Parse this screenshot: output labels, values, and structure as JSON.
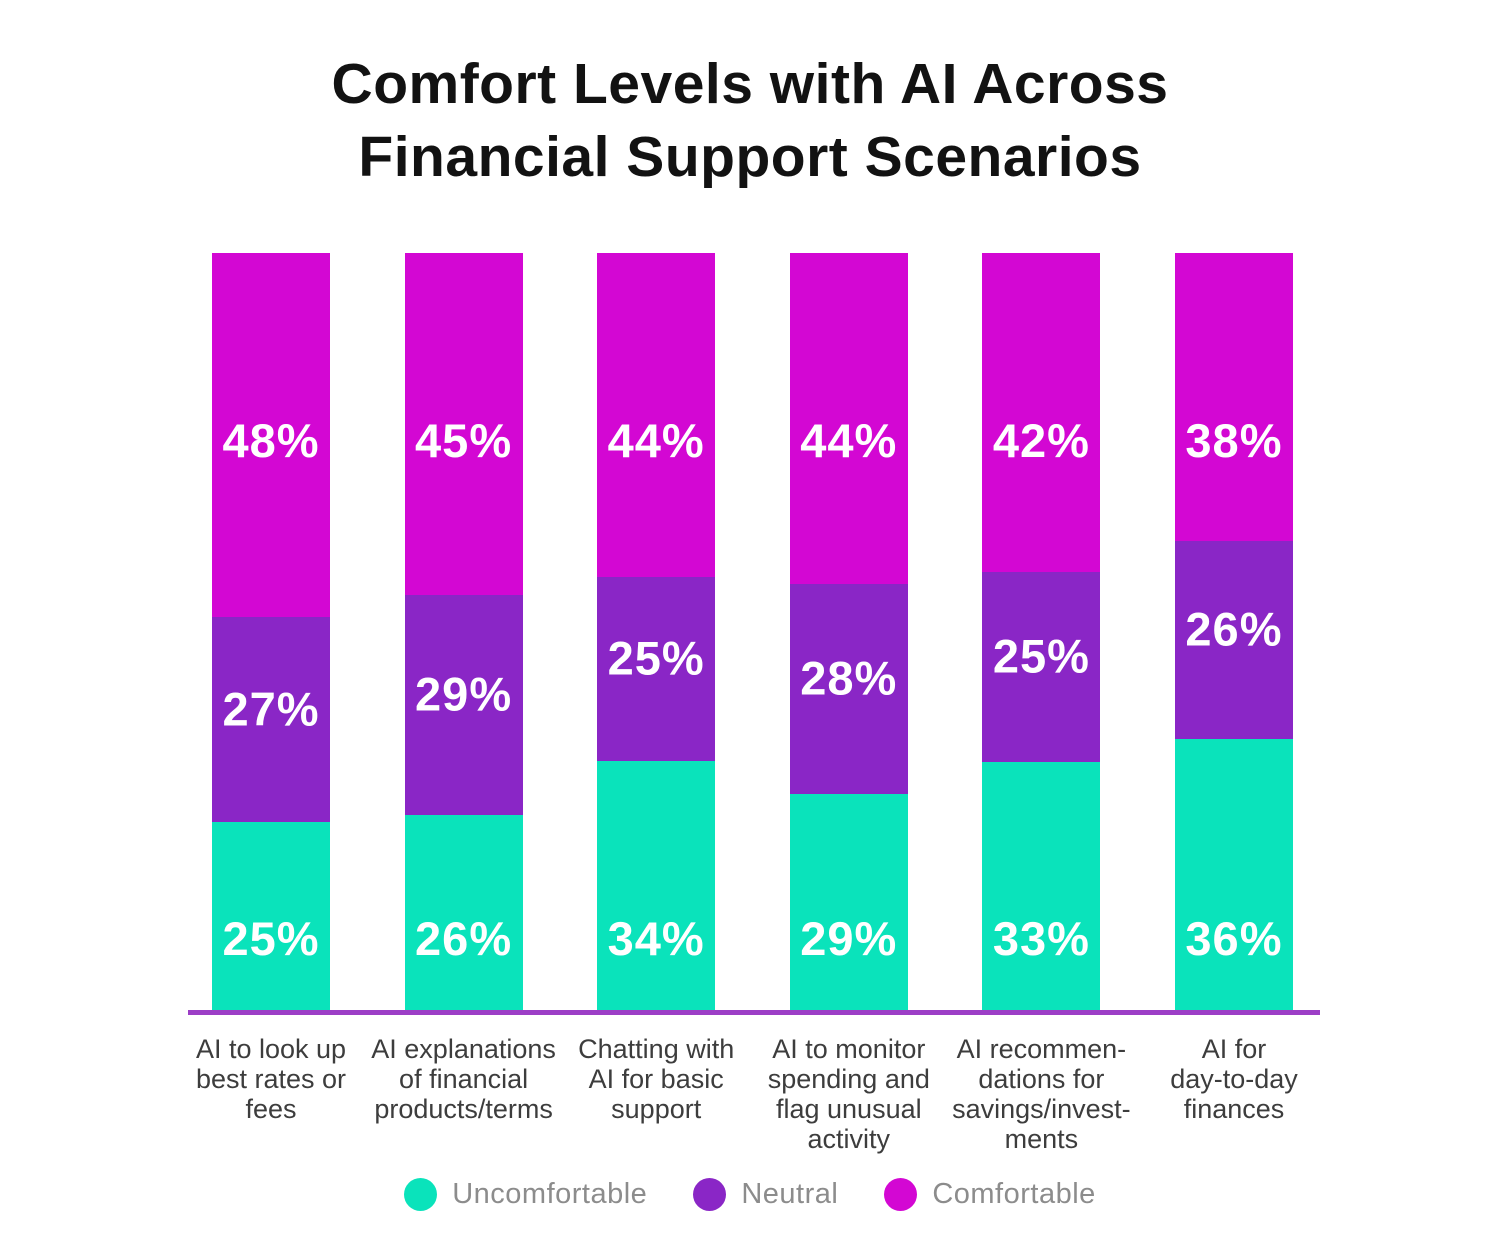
{
  "title": {
    "text": "Comfort Levels with AI Across Financial Support Scenarios",
    "lines": [
      "Comfort Levels with AI Across",
      "Financial Support Scenarios"
    ]
  },
  "colors": {
    "uncomfortable": "#0AE3BB",
    "neutral": "#8A26C6",
    "comfortable": "#D307D3",
    "axis_line": "#9C3EC6",
    "title_text": "#121212",
    "category_text": "#3D3D3D",
    "legend_text": "#8C8C8C",
    "value_label_text": "#FFFFFF"
  },
  "chart_data": {
    "type": "bar",
    "variant": "stacked-100-percent-column",
    "unit": "%",
    "grid": false,
    "legend_position": "bottom",
    "title": "Comfort Levels with AI Across Financial Support Scenarios",
    "xlabel": "",
    "ylabel": "",
    "categories": [
      "AI to look up best rates or fees",
      "AI explanations of financial products/terms",
      "Chatting with AI for basic support",
      "AI to monitor spending and flag unusual activity",
      "AI recommendations for savings/investments",
      "AI for day-to-day finances"
    ],
    "category_label_lines": [
      [
        "AI to look up",
        "best rates or",
        "fees"
      ],
      [
        "AI explanations",
        "of financial",
        "products/terms"
      ],
      [
        "Chatting with",
        "AI for basic",
        "support"
      ],
      [
        "AI to monitor",
        "spending and",
        "flag unusual",
        "activity"
      ],
      [
        "AI recommen-",
        "dations for",
        "savings/invest-",
        "ments"
      ],
      [
        "AI for",
        "day-to-day",
        "finances"
      ]
    ],
    "series": [
      {
        "name": "Uncomfortable",
        "color_key": "uncomfortable",
        "values": [
          25,
          26,
          34,
          29,
          33,
          36
        ]
      },
      {
        "name": "Neutral",
        "color_key": "neutral",
        "values": [
          27,
          29,
          25,
          28,
          25,
          26
        ]
      },
      {
        "name": "Comfortable",
        "color_key": "comfortable",
        "values": [
          48,
          45,
          44,
          44,
          42,
          38
        ]
      }
    ],
    "value_labels": {
      "uncomfortable": [
        "25%",
        "26%",
        "34%",
        "29%",
        "33%",
        "36%"
      ],
      "neutral": [
        "27%",
        "29%",
        "25%",
        "28%",
        "25%",
        "26%"
      ],
      "comfortable": [
        "48%",
        "45%",
        "44%",
        "44%",
        "42%",
        "38%"
      ]
    }
  },
  "legend": {
    "items": [
      {
        "label": "Uncomfortable",
        "color_key": "uncomfortable"
      },
      {
        "label": "Neutral",
        "color_key": "neutral"
      },
      {
        "label": "Comfortable",
        "color_key": "comfortable"
      }
    ]
  }
}
